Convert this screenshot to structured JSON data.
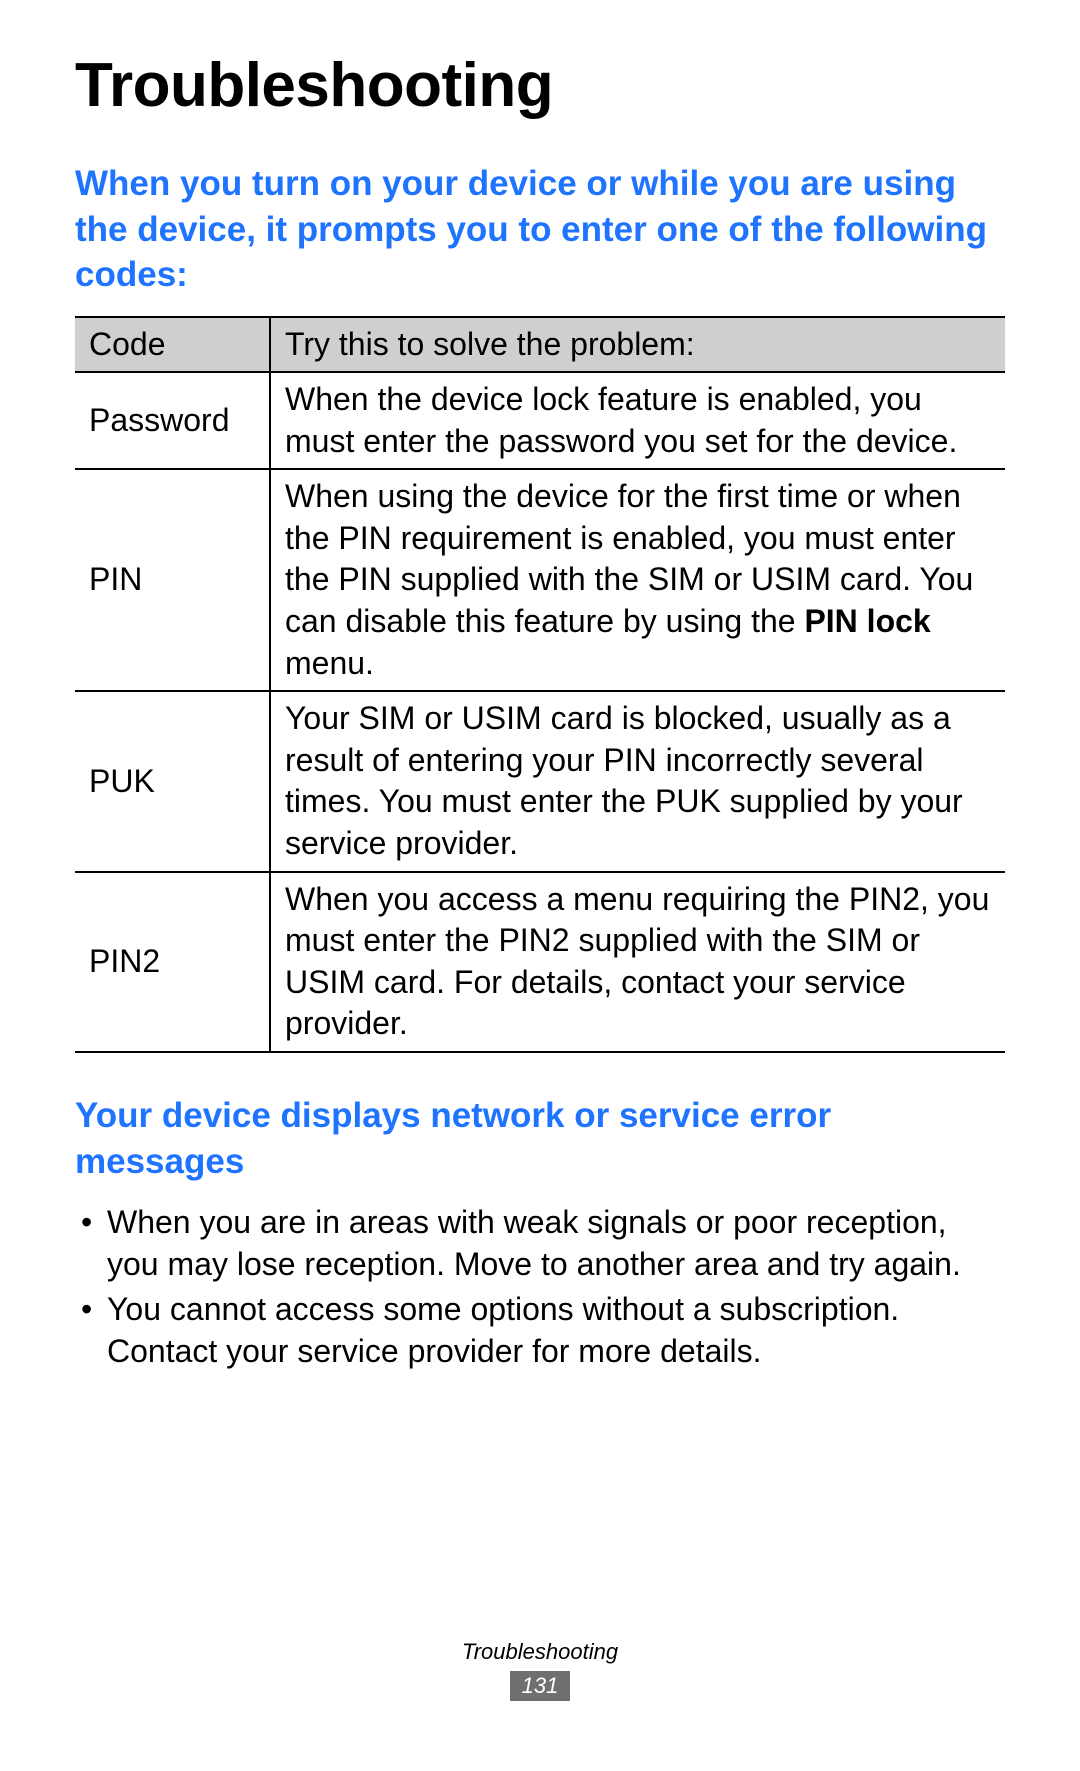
{
  "title": "Troubleshooting",
  "section1_heading": "When you turn on your device or while you are using the device, it prompts you to enter one of the following codes:",
  "table": {
    "header_col1": "Code",
    "header_col2": "Try this to solve the problem:",
    "rows": [
      {
        "code": "Password",
        "solution": "When the device lock feature is enabled, you must enter the password you set for the device."
      },
      {
        "code": "PIN",
        "solution_pre": "When using the device for the first time or when the PIN requirement is enabled, you must enter the PIN supplied with the SIM or USIM card. You can disable this feature by using the ",
        "solution_bold": "PIN lock",
        "solution_post": " menu."
      },
      {
        "code": "PUK",
        "solution": "Your SIM or USIM card is blocked, usually as a result of entering your PIN incorrectly several times. You must enter the PUK supplied by your service provider."
      },
      {
        "code": "PIN2",
        "solution": "When you access a menu requiring the PIN2, you must enter the PIN2 supplied with the SIM or USIM card. For details, contact your service provider."
      }
    ]
  },
  "section2_heading": "Your device displays network or service error messages",
  "bullets": [
    "When you are in areas with weak signals or poor reception, you may lose reception. Move to another area and try again.",
    "You cannot access some options without a subscription. Contact your service provider for more details."
  ],
  "footer_label": "Troubleshooting",
  "page_number": "131",
  "colors": {
    "heading_blue": "#1e73ff",
    "table_header_bg": "#cfcfcf",
    "page_num_bg": "#6f6f6f",
    "text": "#000000",
    "background": "#ffffff"
  }
}
